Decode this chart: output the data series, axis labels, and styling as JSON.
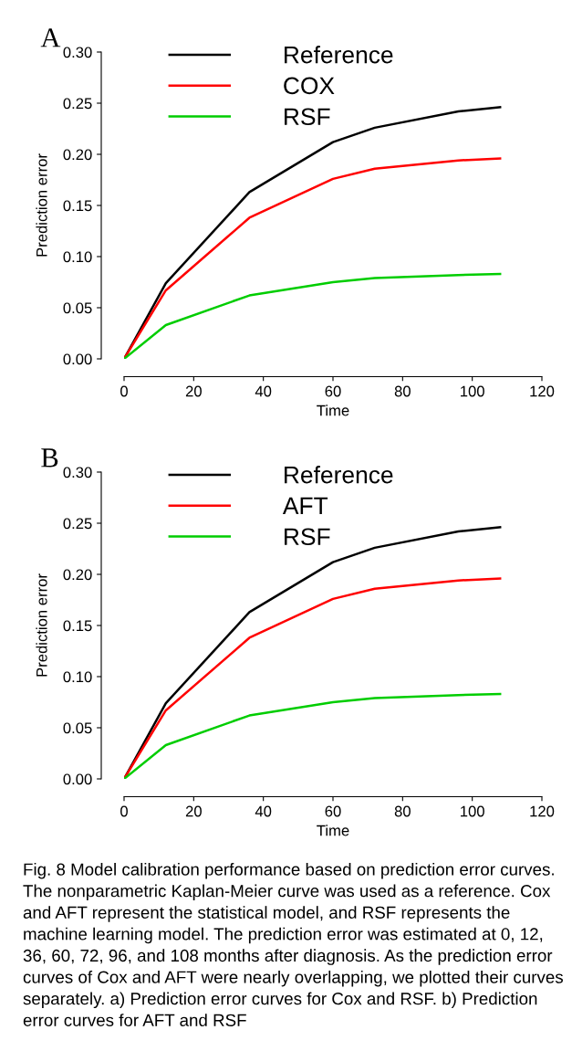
{
  "chart_data": [
    {
      "type": "line",
      "title": "A",
      "xlabel": "Time",
      "ylabel": "Prediction error",
      "x": [
        0,
        12,
        36,
        60,
        72,
        96,
        108
      ],
      "series": [
        {
          "name": "Reference",
          "color": "#000000",
          "values": [
            0.0,
            0.074,
            0.163,
            0.212,
            0.226,
            0.242,
            0.246
          ]
        },
        {
          "name": "COX",
          "color": "#ff0000",
          "values": [
            0.0,
            0.067,
            0.138,
            0.176,
            0.186,
            0.194,
            0.196
          ]
        },
        {
          "name": "RSF",
          "color": "#00cd00",
          "values": [
            0.0,
            0.033,
            0.062,
            0.075,
            0.079,
            0.082,
            0.083
          ]
        }
      ],
      "xlim": [
        0,
        120
      ],
      "xticks": [
        0,
        20,
        40,
        60,
        80,
        100,
        120
      ],
      "ylim": [
        0,
        0.3
      ],
      "yticks": [
        {
          "value": 0,
          "label": "0.00"
        },
        0.05,
        {
          "value": 0.1,
          "label": "0.10"
        },
        0.15,
        {
          "value": 0.2,
          "label": "0.20"
        },
        0.25,
        {
          "value": 0.3,
          "label": "0.30"
        }
      ],
      "legend": "top left",
      "grid": false,
      "marker": "none",
      "line_style": "solid"
    },
    {
      "type": "line",
      "title": "B",
      "xlabel": "Time",
      "ylabel": "Prediction error",
      "x": [
        0,
        12,
        36,
        60,
        72,
        96,
        108
      ],
      "series": [
        {
          "name": "Reference",
          "color": "#000000",
          "values": [
            0.0,
            0.074,
            0.163,
            0.212,
            0.226,
            0.242,
            0.246
          ]
        },
        {
          "name": "AFT",
          "color": "#ff0000",
          "values": [
            0.0,
            0.067,
            0.138,
            0.176,
            0.186,
            0.194,
            0.196
          ]
        },
        {
          "name": "RSF",
          "color": "#00cd00",
          "values": [
            0.0,
            0.033,
            0.062,
            0.075,
            0.079,
            0.082,
            0.083
          ]
        }
      ],
      "xlim": [
        0,
        120
      ],
      "xticks": [
        0,
        20,
        40,
        60,
        80,
        100,
        120
      ],
      "ylim": [
        0,
        0.3
      ],
      "yticks": [
        {
          "value": 0,
          "label": "0.00"
        },
        0.05,
        {
          "value": 0.1,
          "label": "0.10"
        },
        0.15,
        {
          "value": 0.2,
          "label": "0.20"
        },
        0.25,
        {
          "value": 0.3,
          "label": "0.30"
        }
      ],
      "legend": "top left",
      "grid": false,
      "marker": "none",
      "line_style": "solid",
      "annotations": [
        "Fig. 8 Model calibration performance based on prediction error curves. The nonparametric Kaplan-Meier curve was used as a reference. Cox and AFT represent the statistical model, and RSF represents the machine learning model. The prediction error was estimated at 0, 12, 36, 60, 72, 96, and 108 months after diagnosis. As the prediction error curves of Cox and AFT were nearly overlapping, we plotted their curves separately. a) Prediction error curves for Cox and RSF. b) Prediction error curves for AFT and RSF"
      ]
    }
  ]
}
